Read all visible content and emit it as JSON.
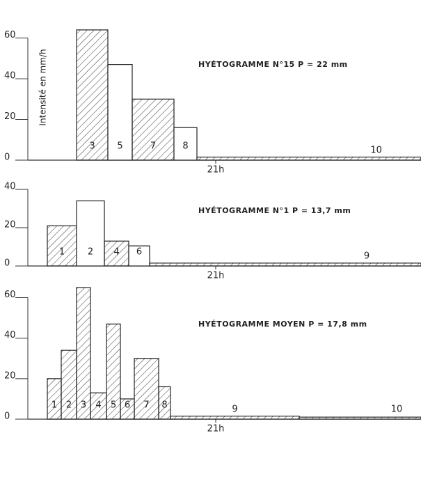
{
  "chart_data": [
    {
      "type": "histogram",
      "title": "HYÉTOGRAMME N°15  P = 22 mm",
      "ylabel": "Intensité en mm/h",
      "bins": [
        19.0,
        19.45,
        19.8,
        20.4,
        20.73,
        23.95
      ],
      "values": [
        64,
        47,
        30,
        16,
        1.5
      ],
      "bar_labels": [
        "3",
        "5",
        "7",
        "8",
        "10"
      ],
      "hatched": [
        true,
        false,
        true,
        false,
        true
      ],
      "color": "#222222",
      "xlim": [
        18.3,
        23.95
      ],
      "xticks": [
        {
          "value": 21,
          "label": "21h"
        }
      ],
      "ylim": [
        0,
        65
      ],
      "yticks": [
        0,
        20,
        40,
        60
      ]
    },
    {
      "type": "histogram",
      "title": "HYÉTOGRAMME N°1  P = 13,7 mm",
      "bins": [
        18.58,
        19.0,
        19.4,
        19.75,
        20.05,
        23.95
      ],
      "values": [
        21,
        34,
        13,
        10.5,
        1.5
      ],
      "bar_labels": [
        "1",
        "2",
        "4",
        "6",
        "9"
      ],
      "hatched": [
        true,
        false,
        true,
        false,
        true
      ],
      "color": "#222222",
      "xlim": [
        18.3,
        23.95
      ],
      "xticks": [
        {
          "value": 21,
          "label": "21h"
        }
      ],
      "ylim": [
        0,
        40
      ],
      "yticks": [
        0,
        20,
        40
      ]
    },
    {
      "type": "histogram",
      "title": "HYÉTOGRAMME MOYEN  P = 17,8 mm",
      "bins": [
        18.58,
        18.78,
        19.0,
        19.2,
        19.43,
        19.63,
        19.83,
        20.18,
        20.35,
        22.2,
        23.95
      ],
      "values": [
        20,
        34,
        65,
        13,
        47,
        10,
        30,
        16,
        1.5,
        1
      ],
      "bar_labels": [
        "1",
        "2",
        "3",
        "4",
        "5",
        "6",
        "7",
        "8",
        "9",
        "10"
      ],
      "hatched": [
        true,
        true,
        true,
        true,
        true,
        true,
        true,
        true,
        true,
        true
      ],
      "color": "#222222",
      "xlim": [
        18.3,
        23.95
      ],
      "xticks": [
        {
          "value": 21,
          "label": "21h"
        }
      ],
      "ylim": [
        0,
        65
      ],
      "yticks": [
        0,
        20,
        40,
        60
      ]
    }
  ]
}
